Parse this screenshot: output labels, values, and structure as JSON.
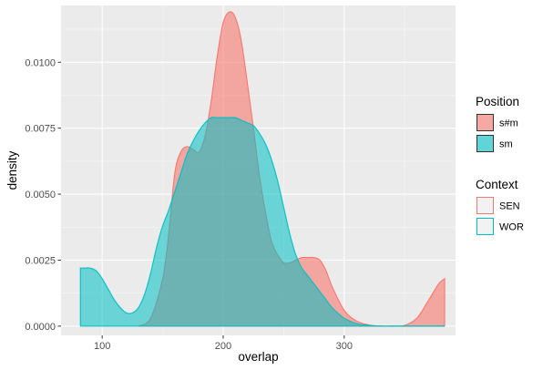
{
  "chart_data": {
    "type": "area",
    "xlabel": "overlap",
    "ylabel": "density",
    "xlim": [
      66,
      392
    ],
    "ylim": [
      -0.00035,
      0.01215
    ],
    "x_ticks": [
      100,
      200,
      300
    ],
    "x_tick_labels": [
      "100",
      "200",
      "300"
    ],
    "y_ticks": [
      0,
      0.0025,
      0.005,
      0.0075,
      0.01
    ],
    "y_tick_labels": [
      "0.0000",
      "0.0025",
      "0.0050",
      "0.0075",
      "0.0100"
    ],
    "grid": true,
    "legend_position": "right",
    "colors": {
      "panel_bg": "#EBEBEB",
      "grid_major": "#FFFFFF",
      "red": "#F8766D",
      "teal": "#00BFC4",
      "axis_text": "#4D4D4D"
    },
    "legends": [
      {
        "title": "Position",
        "type": "fill",
        "entries": [
          {
            "label": "s#m",
            "fill": "#F8766D",
            "stroke": "#333333"
          },
          {
            "label": "sm",
            "fill": "#00BFC4",
            "stroke": "#333333"
          }
        ]
      },
      {
        "title": "Context",
        "type": "outline",
        "entries": [
          {
            "label": "SEN",
            "stroke": "#F8766D"
          },
          {
            "label": "WOR",
            "stroke": "#00BFC4"
          }
        ]
      }
    ],
    "series": [
      {
        "fill": "#F8766D",
        "stroke": "#F8766D",
        "fill_opacity": 0.6,
        "x": [
          130,
          140,
          150,
          155,
          160,
          165,
          170,
          175,
          180,
          185,
          190,
          195,
          200,
          205,
          210,
          215,
          220,
          225,
          230,
          235,
          240,
          245,
          250,
          255,
          260,
          265,
          270,
          275,
          280,
          285,
          290,
          300,
          310,
          320,
          330,
          340,
          350,
          360,
          370,
          378,
          383
        ],
        "y": [
          0,
          0.0003,
          0.0018,
          0.0035,
          0.0058,
          0.0066,
          0.0068,
          0.0067,
          0.0066,
          0.0072,
          0.0085,
          0.0102,
          0.0115,
          0.0119,
          0.0117,
          0.0108,
          0.0092,
          0.0075,
          0.0057,
          0.0043,
          0.0032,
          0.0027,
          0.0024,
          0.0024,
          0.0025,
          0.0026,
          0.0026,
          0.0026,
          0.0025,
          0.0021,
          0.0015,
          0.0006,
          0.0002,
          5e-05,
          0,
          0,
          3e-05,
          0.0003,
          0.001,
          0.0016,
          0.0018
        ]
      },
      {
        "fill": "#00BFC4",
        "stroke": "#00BFC4",
        "fill_opacity": 0.55,
        "x": [
          82,
          85,
          90,
          95,
          100,
          105,
          110,
          115,
          120,
          125,
          130,
          135,
          140,
          145,
          150,
          155,
          160,
          165,
          170,
          175,
          180,
          185,
          190,
          195,
          200,
          205,
          210,
          215,
          220,
          225,
          230,
          235,
          240,
          245,
          250,
          255,
          260,
          265,
          270,
          275,
          280,
          285,
          290,
          300,
          310,
          320,
          330,
          340,
          350,
          383
        ],
        "y": [
          0.0022,
          0.0022,
          0.0022,
          0.0021,
          0.0018,
          0.0014,
          0.001,
          0.0007,
          0.0005,
          0.0005,
          0.0007,
          0.0012,
          0.002,
          0.003,
          0.0038,
          0.0044,
          0.0051,
          0.0058,
          0.0065,
          0.007,
          0.0074,
          0.0077,
          0.0079,
          0.0079,
          0.0079,
          0.0079,
          0.0079,
          0.0078,
          0.0077,
          0.0076,
          0.0073,
          0.0069,
          0.0063,
          0.0055,
          0.0045,
          0.0035,
          0.0027,
          0.0022,
          0.0019,
          0.0016,
          0.0013,
          0.001,
          0.0007,
          0.0003,
          0.0001,
          3e-05,
          0,
          0,
          0,
          0
        ]
      }
    ]
  }
}
